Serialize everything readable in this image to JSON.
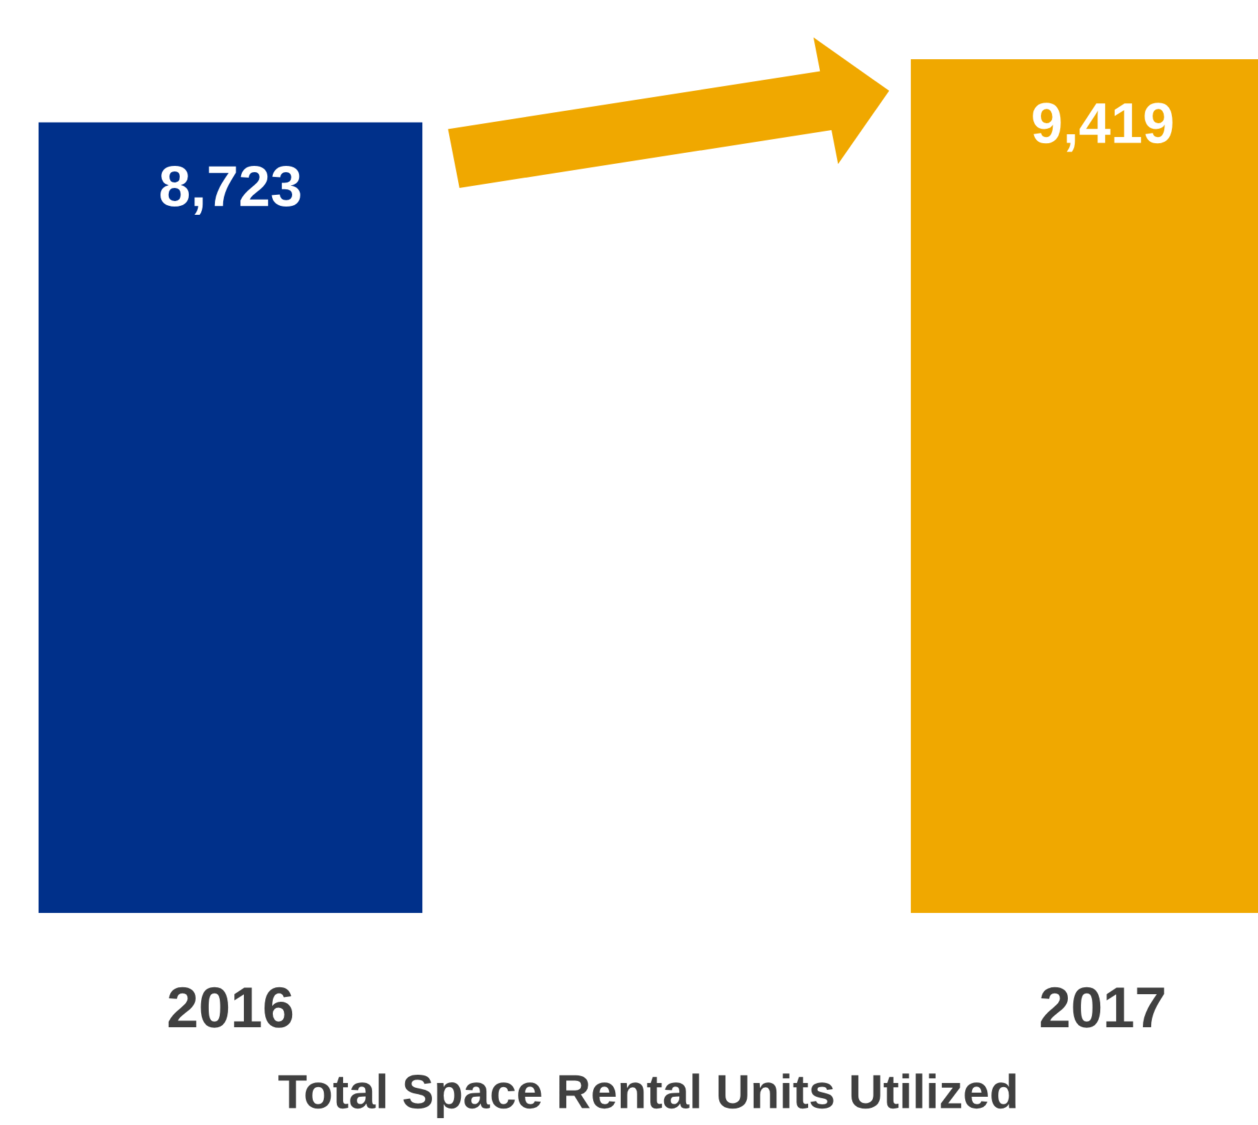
{
  "chart_data": {
    "type": "bar",
    "xlabel": "Total Space Rental Units Utilized",
    "categories": [
      "2016",
      "2017"
    ],
    "values": [
      8723,
      9419
    ],
    "colors": [
      "#00308a",
      "#f0a800"
    ],
    "value_labels": [
      "8,723",
      "9,419"
    ],
    "grid": false,
    "legend": false
  }
}
